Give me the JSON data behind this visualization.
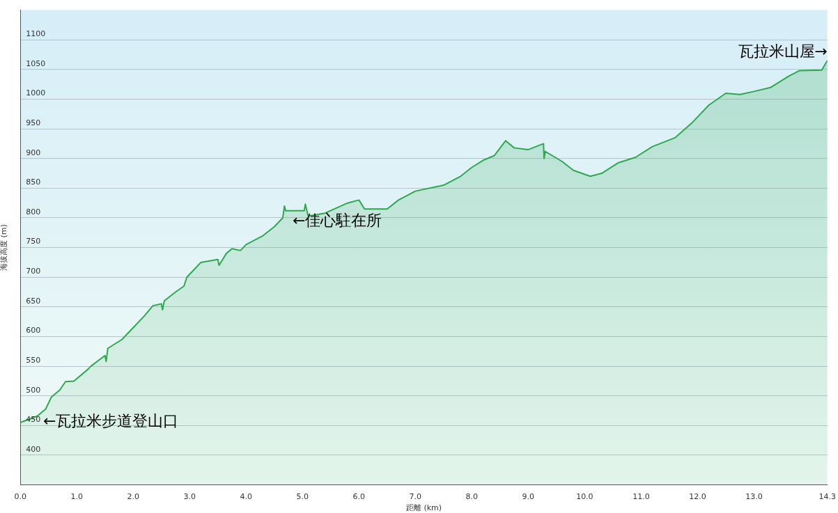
{
  "chart_data": {
    "type": "area",
    "xlabel": "距離 (km)",
    "ylabel": "海拔高度 (m)",
    "x": [
      0,
      0.3,
      0.45,
      0.55,
      0.7,
      0.8,
      0.95,
      1.2,
      1.25,
      1.5,
      1.52,
      1.55,
      1.8,
      2.0,
      2.2,
      2.35,
      2.5,
      2.52,
      2.55,
      2.75,
      2.9,
      2.95,
      3.1,
      3.2,
      3.5,
      3.52,
      3.65,
      3.75,
      3.9,
      4.0,
      4.3,
      4.5,
      4.65,
      4.68,
      4.7,
      5.03,
      5.05,
      5.1,
      5.4,
      5.8,
      6.0,
      6.1,
      6.5,
      6.7,
      7.0,
      7.5,
      7.8,
      8.0,
      8.2,
      8.4,
      8.6,
      8.75,
      9.0,
      9.27,
      9.28,
      9.3,
      9.6,
      9.8,
      10.1,
      10.3,
      10.6,
      10.9,
      11.2,
      11.6,
      11.9,
      12.2,
      12.5,
      12.75,
      13.0,
      13.3,
      13.6,
      13.8,
      14.2,
      14.3
    ],
    "series": [
      {
        "color": "#2ea84e",
        "values": [
          455,
          466,
          478,
          498,
          510,
          524,
          525,
          545,
          550,
          568,
          558,
          580,
          595,
          615,
          635,
          652,
          655,
          645,
          660,
          675,
          685,
          700,
          715,
          725,
          730,
          720,
          740,
          748,
          745,
          755,
          770,
          785,
          800,
          820,
          812,
          812,
          823,
          803,
          808,
          825,
          830,
          815,
          815,
          830,
          845,
          855,
          870,
          885,
          897,
          905,
          930,
          918,
          915,
          925,
          900,
          912,
          895,
          880,
          870,
          875,
          893,
          902,
          920,
          935,
          960,
          990,
          1010,
          1008,
          1013,
          1020,
          1038,
          1048,
          1049,
          1065
        ]
      }
    ],
    "xlim": [
      0,
      14.3
    ],
    "ylim": [
      350,
      1150
    ],
    "xticks": [
      {
        "value": 0,
        "label": "0.0"
      },
      {
        "value": 1,
        "label": "1.0"
      },
      {
        "value": 2,
        "label": "2.0"
      },
      {
        "value": 3,
        "label": "3.0"
      },
      {
        "value": 4,
        "label": "4.0"
      },
      {
        "value": 5,
        "label": "5.0"
      },
      {
        "value": 6,
        "label": "6.0"
      },
      {
        "value": 7,
        "label": "7.0"
      },
      {
        "value": 8,
        "label": "8.0"
      },
      {
        "value": 9,
        "label": "9.0"
      },
      {
        "value": 10,
        "label": "10.0"
      },
      {
        "value": 11,
        "label": "11.0"
      },
      {
        "value": 12,
        "label": "12.0"
      },
      {
        "value": 13,
        "label": "13.0"
      },
      {
        "value": 14.3,
        "label": "14.3"
      }
    ],
    "yticks": [
      400,
      450,
      500,
      550,
      600,
      650,
      700,
      750,
      800,
      850,
      900,
      950,
      1000,
      1050,
      1100
    ],
    "grid": "y",
    "legend": false,
    "marker": "none",
    "annotations": [
      "←瓦拉米步道登山口",
      "←佳心駐在所",
      "瓦拉米山屋→"
    ]
  }
}
